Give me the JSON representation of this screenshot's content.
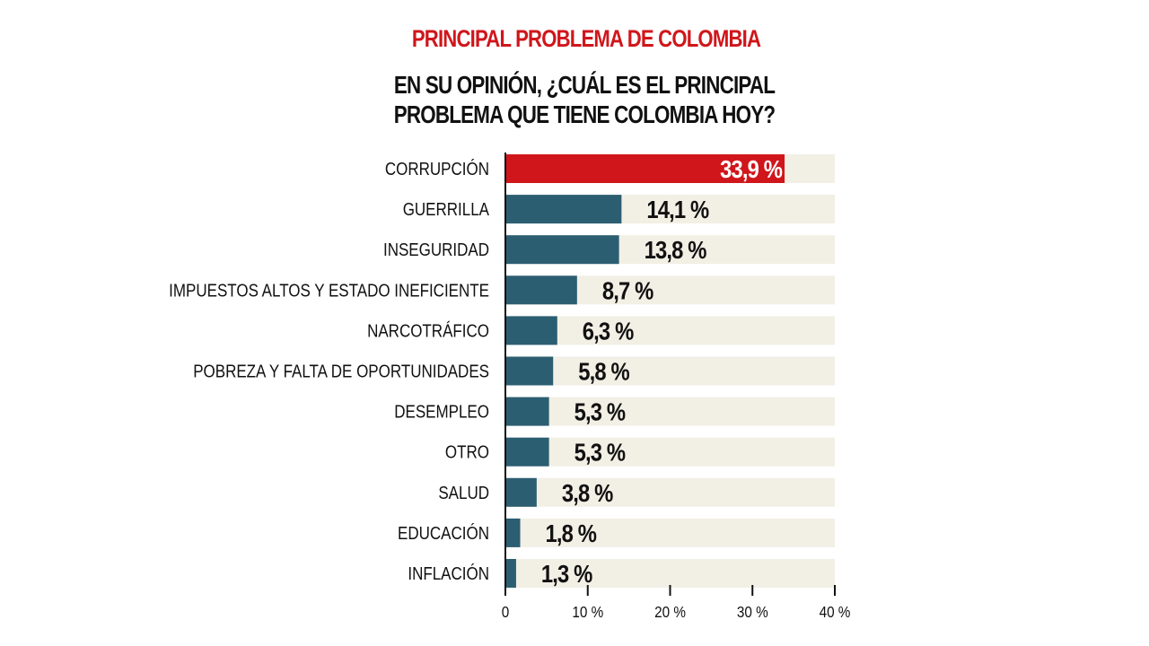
{
  "chart_data": {
    "type": "bar",
    "orientation": "horizontal",
    "title": "PRINCIPAL PROBLEMA DE COLOMBIA",
    "subtitle": "EN SU OPINIÓN, ¿CUÁL ES EL PRINCIPAL PROBLEMA QUE TIENE COLOMBIA HOY?",
    "categories": [
      "CORRUPCIÓN",
      "GUERRILLA",
      "INSEGURIDAD",
      "IMPUESTOS ALTOS Y ESTADO INEFICIENTE",
      "NARCOTRÁFICO",
      "POBREZA Y FALTA DE OPORTUNIDADES",
      "DESEMPLEO",
      "OTRO",
      "SALUD",
      "EDUCACIÓN",
      "INFLACIÓN"
    ],
    "values": [
      33.9,
      14.1,
      13.8,
      8.7,
      6.3,
      5.8,
      5.3,
      5.3,
      3.8,
      1.8,
      1.3
    ],
    "value_labels": [
      "33,9 %",
      "14,1 %",
      "13,8 %",
      "8,7 %",
      "6,3 %",
      "5,8 %",
      "5,3 %",
      "5,3 %",
      "3,8 %",
      "1,8 %",
      "1,3 %"
    ],
    "xlim": [
      0,
      40
    ],
    "xticks": [
      0,
      10,
      20,
      30,
      40
    ],
    "xtick_labels": [
      "0",
      "10 %",
      "20 %",
      "30 %",
      "40 %"
    ],
    "grid": false,
    "colors": {
      "highlight": "#d0161b",
      "bar": "#2c5e72",
      "track": "#f2efe5",
      "title": "#d0161b"
    }
  }
}
